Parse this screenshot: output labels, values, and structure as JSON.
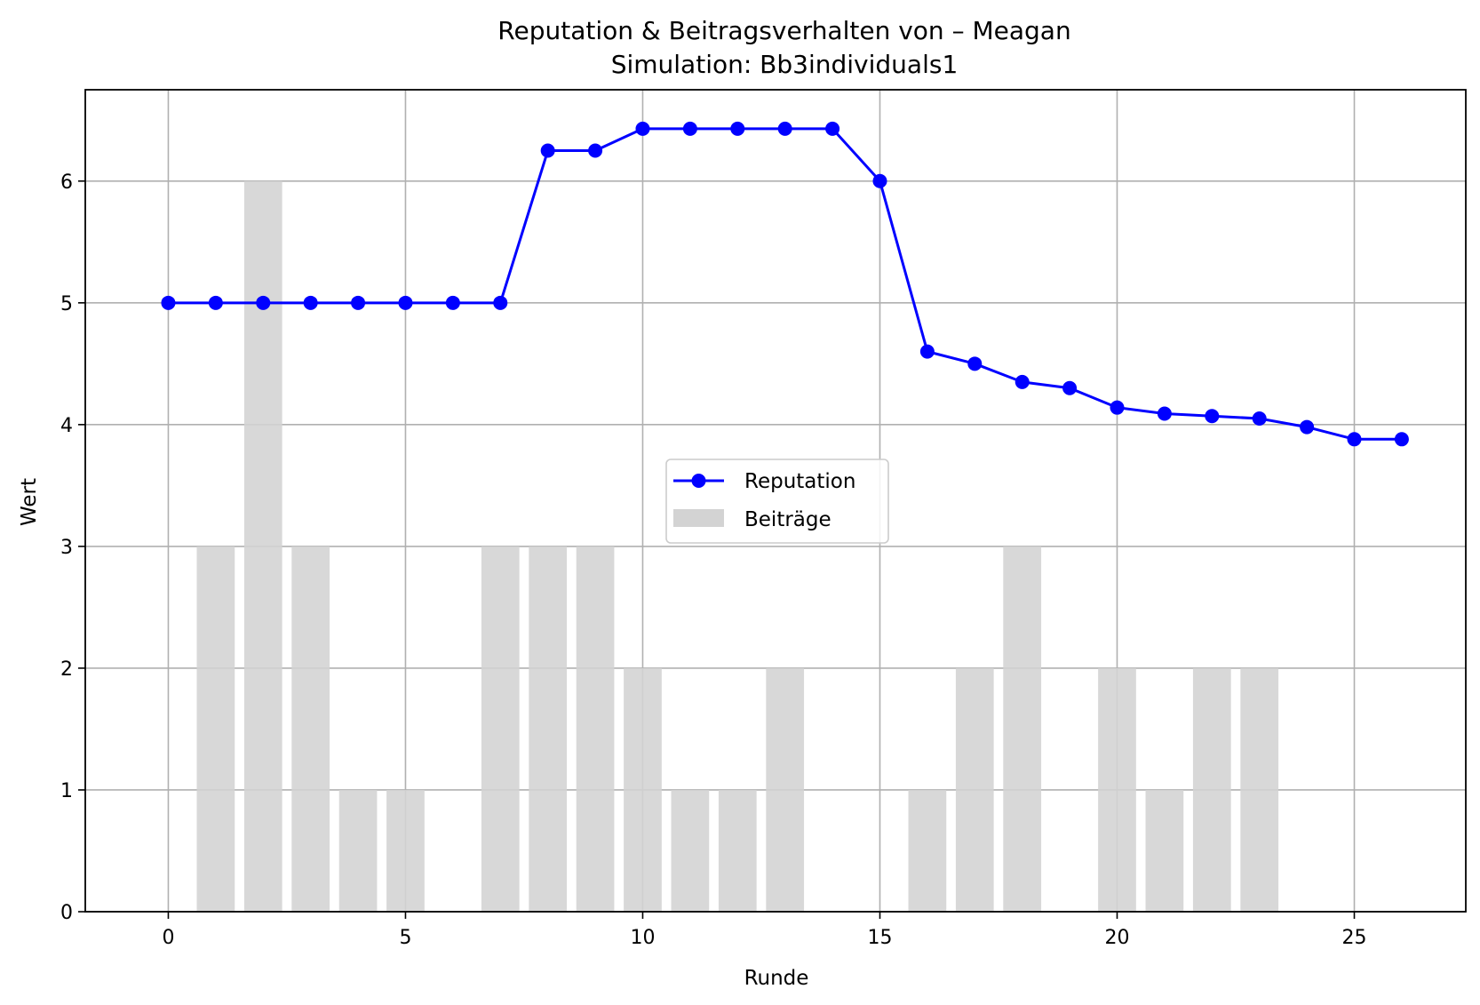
{
  "chart_data": {
    "type": "bar+line",
    "title": "Reputation & Beitragsverhalten von – Meagan",
    "subtitle": "Simulation: Bb3individuals1",
    "xlabel": "Runde",
    "ylabel": "Wert",
    "xlim": [
      -1.75,
      27.35
    ],
    "ylim": [
      0,
      6.75
    ],
    "xticks": [
      0,
      5,
      10,
      15,
      20,
      25
    ],
    "yticks": [
      0,
      1,
      2,
      3,
      4,
      5,
      6
    ],
    "grid": true,
    "legend_position": "center",
    "series": [
      {
        "name": "Reputation",
        "type": "line",
        "color": "#0000ff",
        "marker": "circle",
        "x": [
          0,
          1,
          2,
          3,
          4,
          5,
          6,
          7,
          8,
          9,
          10,
          11,
          12,
          13,
          14,
          15,
          16,
          17,
          18,
          19,
          20,
          21,
          22,
          23,
          24,
          25,
          26
        ],
        "values": [
          5,
          5,
          5,
          5,
          5,
          5,
          5,
          5,
          6.25,
          6.25,
          6.43,
          6.43,
          6.43,
          6.43,
          6.43,
          6,
          4.6,
          4.5,
          4.35,
          4.3,
          4.14,
          4.09,
          4.07,
          4.05,
          3.98,
          3.88,
          3.88
        ]
      },
      {
        "name": "Beiträge",
        "type": "bar",
        "color": "#d3d3d3",
        "x": [
          0,
          1,
          2,
          3,
          4,
          5,
          6,
          7,
          8,
          9,
          10,
          11,
          12,
          13,
          14,
          15,
          16,
          17,
          18,
          19,
          20,
          21,
          22,
          23,
          24,
          25,
          26
        ],
        "values": [
          0,
          3,
          6,
          3,
          1,
          1,
          0,
          3,
          3,
          3,
          2,
          1,
          1,
          2,
          0,
          0,
          1,
          2,
          3,
          0,
          2,
          1,
          2,
          2,
          0,
          0,
          0
        ]
      }
    ]
  }
}
